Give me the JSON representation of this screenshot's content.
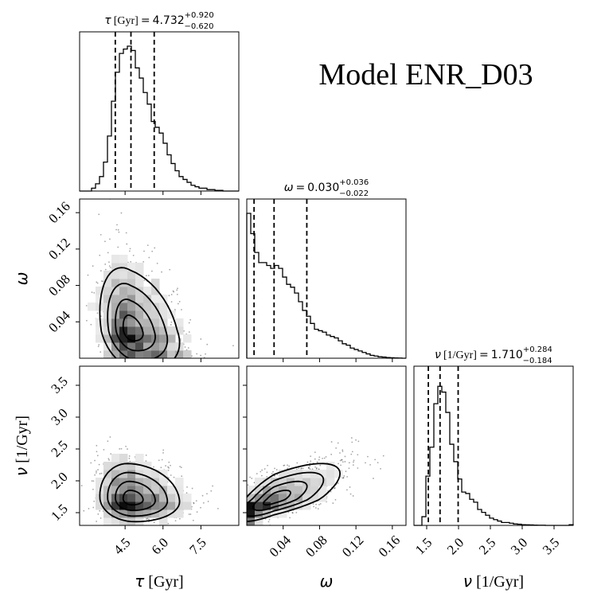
{
  "figure_title": "Model ENR_D03",
  "chart_data": {
    "type": "corner",
    "parameters": [
      {
        "id": "tau",
        "symbol": "τ",
        "unit": "[Gyr]",
        "axis_label": "τ [Gyr]",
        "range": [
          2.7,
          9.0
        ],
        "ticks": [
          4.5,
          6.0,
          7.5
        ],
        "tick_labels": [
          "4.5",
          "6.0",
          "7.5"
        ],
        "median": 4.732,
        "err_plus": 0.92,
        "err_minus": 0.62,
        "median_text": "4.732",
        "err_plus_text": "+0.920",
        "err_minus_text": "−0.620",
        "quantiles": [
          4.112,
          4.732,
          5.652
        ]
      },
      {
        "id": "omega",
        "symbol": "ω",
        "unit": "",
        "axis_label": "ω",
        "range": [
          0.0,
          0.175
        ],
        "ticks": [
          0.04,
          0.08,
          0.12,
          0.16
        ],
        "tick_labels": [
          "0.04",
          "0.08",
          "0.12",
          "0.16"
        ],
        "median": 0.03,
        "err_plus": 0.036,
        "err_minus": 0.022,
        "median_text": "0.030",
        "err_plus_text": "+0.036",
        "err_minus_text": "−0.022",
        "quantiles": [
          0.008,
          0.03,
          0.066
        ]
      },
      {
        "id": "nu",
        "symbol": "ν",
        "unit": "[1/Gyr]",
        "axis_label": "ν [1/Gyr]",
        "range": [
          1.3,
          3.8
        ],
        "ticks": [
          1.5,
          2.0,
          2.5,
          3.0,
          3.5
        ],
        "tick_labels": [
          "1.5",
          "2.0",
          "2.5",
          "3.0",
          "3.5"
        ],
        "median": 1.71,
        "err_plus": 0.284,
        "err_minus": 0.184,
        "median_text": "1.710",
        "err_plus_text": "+0.284",
        "err_minus_text": "−0.184",
        "quantiles": [
          1.526,
          1.71,
          1.994
        ]
      }
    ],
    "histograms": {
      "tau": [
        0,
        0,
        0,
        0.02,
        0.05,
        0.1,
        0.2,
        0.38,
        0.62,
        0.82,
        0.95,
        0.98,
        1.0,
        0.97,
        0.85,
        0.78,
        0.68,
        0.6,
        0.48,
        0.44,
        0.4,
        0.33,
        0.25,
        0.19,
        0.14,
        0.1,
        0.08,
        0.06,
        0.04,
        0.03,
        0.02,
        0.02,
        0.01,
        0.01,
        0.005,
        0.005,
        0,
        0,
        0,
        0
      ],
      "omega": [
        1.0,
        0.86,
        0.73,
        0.66,
        0.66,
        0.64,
        0.62,
        0.64,
        0.62,
        0.56,
        0.51,
        0.49,
        0.45,
        0.39,
        0.33,
        0.29,
        0.24,
        0.2,
        0.19,
        0.18,
        0.16,
        0.15,
        0.14,
        0.12,
        0.1,
        0.09,
        0.07,
        0.06,
        0.05,
        0.04,
        0.03,
        0.02,
        0.015,
        0.01,
        0.008,
        0.005,
        0.003,
        0.002,
        0.001,
        0.0
      ],
      "nu": [
        0,
        0,
        0.06,
        0.34,
        0.54,
        0.84,
        0.96,
        0.92,
        0.78,
        0.56,
        0.44,
        0.32,
        0.23,
        0.22,
        0.18,
        0.16,
        0.11,
        0.09,
        0.07,
        0.05,
        0.04,
        0.03,
        0.02,
        0.02,
        0.015,
        0.01,
        0.008,
        0.005,
        0.004,
        0.003,
        0.002,
        0.001,
        0.001,
        0.0,
        0.0,
        0.0,
        0.0,
        0.0,
        0.0,
        0.005
      ]
    },
    "correlations": {
      "omega_vs_tau": -0.3,
      "nu_vs_tau": -0.1,
      "nu_vs_omega": 0.72
    },
    "contour_levels": [
      0.5,
      1.0,
      1.5,
      2.0
    ],
    "grid": false
  }
}
